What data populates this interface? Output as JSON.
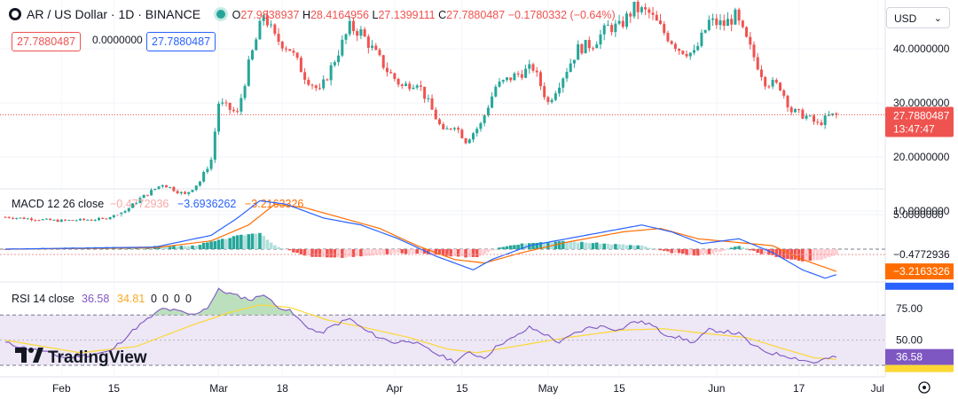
{
  "header": {
    "symbol": "AR / US Dollar · 1D · BINANCE",
    "open_label": "O",
    "open": "27.9838937",
    "high_label": "H",
    "high": "28.4164956",
    "low_label": "L",
    "low": "27.1399111",
    "close_label": "C",
    "close": "27.7880487",
    "change": "−0.1780332 (−0.64%)",
    "bid": "27.7880487",
    "spread": "0.0000000",
    "ask": "27.7880487"
  },
  "currency_select": "USD",
  "last_price_label": "27.7880487",
  "countdown": "13:47:47",
  "brand": "TradingView",
  "colors": {
    "up": "#26a69a",
    "down": "#ef5350",
    "macd": "#2962ff",
    "signal": "#ff6d00",
    "rsi": "#7e57c2",
    "rsi_ma": "#fdd835"
  },
  "chart_data": [
    {
      "type": "candlestick",
      "title": "AR / US Dollar · 1D · BINANCE",
      "y_ticks": [
        "10.0000000",
        "20.0000000",
        "30.0000000",
        "40.0000000"
      ],
      "ylim": [
        3,
        50
      ],
      "x_ticks": [
        "Feb",
        "15",
        "Mar",
        "18",
        "Apr",
        "15",
        "May",
        "15",
        "Jun",
        "17",
        "Jul"
      ],
      "last_price": 27.7880487,
      "close_path": [
        {
          "d": 0,
          "c": 8.9
        },
        {
          "d": 14,
          "c": 8.2
        },
        {
          "d": 26,
          "c": 8.5
        },
        {
          "d": 32,
          "c": 10.0
        },
        {
          "d": 36,
          "c": 12.3
        },
        {
          "d": 42,
          "c": 15.0
        },
        {
          "d": 48,
          "c": 13.0
        },
        {
          "d": 52,
          "c": 15.5
        },
        {
          "d": 55,
          "c": 19.5
        },
        {
          "d": 57,
          "c": 30.0
        },
        {
          "d": 62,
          "c": 28.0
        },
        {
          "d": 65,
          "c": 37.0
        },
        {
          "d": 68,
          "c": 44.0
        },
        {
          "d": 69,
          "c": 46.5
        },
        {
          "d": 72,
          "c": 42.0
        },
        {
          "d": 76,
          "c": 40.0
        },
        {
          "d": 80,
          "c": 35.0
        },
        {
          "d": 84,
          "c": 32.0
        },
        {
          "d": 88,
          "c": 38.0
        },
        {
          "d": 92,
          "c": 44.0
        },
        {
          "d": 95,
          "c": 43.0
        },
        {
          "d": 98,
          "c": 40.0
        },
        {
          "d": 102,
          "c": 36.0
        },
        {
          "d": 106,
          "c": 33.0
        },
        {
          "d": 110,
          "c": 34.0
        },
        {
          "d": 113,
          "c": 30.0
        },
        {
          "d": 117,
          "c": 24.5
        },
        {
          "d": 120,
          "c": 26.0
        },
        {
          "d": 123,
          "c": 23.0
        },
        {
          "d": 127,
          "c": 26.0
        },
        {
          "d": 131,
          "c": 33.0
        },
        {
          "d": 136,
          "c": 35.0
        },
        {
          "d": 141,
          "c": 36.5
        },
        {
          "d": 145,
          "c": 30.0
        },
        {
          "d": 149,
          "c": 35.0
        },
        {
          "d": 153,
          "c": 40.0
        },
        {
          "d": 157,
          "c": 41.0
        },
        {
          "d": 161,
          "c": 44.0
        },
        {
          "d": 164,
          "c": 44.0
        },
        {
          "d": 168,
          "c": 47.5
        },
        {
          "d": 172,
          "c": 46.5
        },
        {
          "d": 176,
          "c": 43.0
        },
        {
          "d": 180,
          "c": 40.0
        },
        {
          "d": 184,
          "c": 39.0
        },
        {
          "d": 188,
          "c": 45.0
        },
        {
          "d": 192,
          "c": 44.5
        },
        {
          "d": 195,
          "c": 46.0
        },
        {
          "d": 199,
          "c": 40.0
        },
        {
          "d": 203,
          "c": 34.0
        },
        {
          "d": 207,
          "c": 33.0
        },
        {
          "d": 210,
          "c": 28.5
        },
        {
          "d": 214,
          "c": 27.5
        },
        {
          "d": 217,
          "c": 26.0
        },
        {
          "d": 220,
          "c": 27.5
        },
        {
          "d": 222,
          "c": 27.8
        }
      ]
    },
    {
      "type": "line",
      "title": "MACD 12 26 close",
      "values_shown": [
        "−0.4772936",
        "−3.6936262",
        "−3.2163326"
      ],
      "y_ticks": [
        "5.0000000"
      ],
      "ylim": [
        -7.5,
        7.5
      ],
      "series": [
        {
          "name": "MACD",
          "points": [
            {
              "d": 0,
              "v": 0
            },
            {
              "d": 40,
              "v": 0.3
            },
            {
              "d": 55,
              "v": 2.0
            },
            {
              "d": 62,
              "v": 4.5
            },
            {
              "d": 68,
              "v": 7.0
            },
            {
              "d": 75,
              "v": 6.5
            },
            {
              "d": 85,
              "v": 4.5
            },
            {
              "d": 95,
              "v": 3.5
            },
            {
              "d": 105,
              "v": 1.5
            },
            {
              "d": 115,
              "v": -1.0
            },
            {
              "d": 125,
              "v": -3.0
            },
            {
              "d": 130,
              "v": -1.5
            },
            {
              "d": 140,
              "v": 0.5
            },
            {
              "d": 150,
              "v": 1.5
            },
            {
              "d": 160,
              "v": 2.5
            },
            {
              "d": 170,
              "v": 3.5
            },
            {
              "d": 178,
              "v": 2.5
            },
            {
              "d": 186,
              "v": 0.8
            },
            {
              "d": 196,
              "v": 1.5
            },
            {
              "d": 205,
              "v": -0.5
            },
            {
              "d": 213,
              "v": -3.0
            },
            {
              "d": 219,
              "v": -4.2
            },
            {
              "d": 222,
              "v": -3.69
            }
          ]
        },
        {
          "name": "Signal",
          "points": [
            {
              "d": 0,
              "v": 0
            },
            {
              "d": 40,
              "v": 0.2
            },
            {
              "d": 55,
              "v": 1.2
            },
            {
              "d": 65,
              "v": 3.5
            },
            {
              "d": 72,
              "v": 6.5
            },
            {
              "d": 80,
              "v": 6.0
            },
            {
              "d": 90,
              "v": 4.5
            },
            {
              "d": 100,
              "v": 3.0
            },
            {
              "d": 110,
              "v": 0.5
            },
            {
              "d": 120,
              "v": -1.5
            },
            {
              "d": 128,
              "v": -2.0
            },
            {
              "d": 138,
              "v": -0.5
            },
            {
              "d": 150,
              "v": 1.0
            },
            {
              "d": 165,
              "v": 2.5
            },
            {
              "d": 175,
              "v": 3.0
            },
            {
              "d": 185,
              "v": 1.5
            },
            {
              "d": 195,
              "v": 1.0
            },
            {
              "d": 205,
              "v": 0.5
            },
            {
              "d": 213,
              "v": -1.5
            },
            {
              "d": 222,
              "v": -3.22
            }
          ]
        }
      ],
      "histogram": [
        {
          "d": 0,
          "v": 0
        },
        {
          "d": 50,
          "v": 0.3
        },
        {
          "d": 57,
          "v": 0.8
        },
        {
          "d": 62,
          "v": 1.2
        },
        {
          "d": 68,
          "v": 1.5
        },
        {
          "d": 72,
          "v": 0.3
        },
        {
          "d": 80,
          "v": -0.6
        },
        {
          "d": 88,
          "v": -0.8
        },
        {
          "d": 96,
          "v": -0.6
        },
        {
          "d": 104,
          "v": -0.4
        },
        {
          "d": 112,
          "v": -0.4
        },
        {
          "d": 120,
          "v": -0.7
        },
        {
          "d": 126,
          "v": -0.7
        },
        {
          "d": 132,
          "v": 0.2
        },
        {
          "d": 140,
          "v": 0.6
        },
        {
          "d": 150,
          "v": 0.7
        },
        {
          "d": 160,
          "v": 0.5
        },
        {
          "d": 170,
          "v": 0.3
        },
        {
          "d": 176,
          "v": -0.2
        },
        {
          "d": 184,
          "v": -0.6
        },
        {
          "d": 190,
          "v": -0.3
        },
        {
          "d": 196,
          "v": 0.3
        },
        {
          "d": 202,
          "v": -0.4
        },
        {
          "d": 208,
          "v": -0.8
        },
        {
          "d": 213,
          "v": -1.1
        },
        {
          "d": 218,
          "v": -0.9
        },
        {
          "d": 222,
          "v": -0.48
        }
      ]
    },
    {
      "type": "line",
      "title": "RSI 14 close",
      "values_shown": [
        "36.58",
        "34.81",
        "0",
        "0",
        "0",
        "0"
      ],
      "y_ticks": [
        "75.00",
        "50.00"
      ],
      "ylim": [
        30,
        95
      ],
      "band": [
        30,
        70
      ],
      "series": [
        {
          "name": "RSI",
          "points": [
            {
              "d": 0,
              "v": 48
            },
            {
              "d": 5,
              "v": 44
            },
            {
              "d": 10,
              "v": 41
            },
            {
              "d": 16,
              "v": 36
            },
            {
              "d": 22,
              "v": 38
            },
            {
              "d": 28,
              "v": 41
            },
            {
              "d": 35,
              "v": 60
            },
            {
              "d": 42,
              "v": 75
            },
            {
              "d": 46,
              "v": 73
            },
            {
              "d": 50,
              "v": 70
            },
            {
              "d": 54,
              "v": 76
            },
            {
              "d": 57,
              "v": 90
            },
            {
              "d": 62,
              "v": 85
            },
            {
              "d": 66,
              "v": 82
            },
            {
              "d": 69,
              "v": 87
            },
            {
              "d": 72,
              "v": 78
            },
            {
              "d": 76,
              "v": 73
            },
            {
              "d": 80,
              "v": 62
            },
            {
              "d": 84,
              "v": 55
            },
            {
              "d": 88,
              "v": 62
            },
            {
              "d": 92,
              "v": 67
            },
            {
              "d": 96,
              "v": 58
            },
            {
              "d": 100,
              "v": 52
            },
            {
              "d": 104,
              "v": 48
            },
            {
              "d": 108,
              "v": 50
            },
            {
              "d": 112,
              "v": 44
            },
            {
              "d": 116,
              "v": 38
            },
            {
              "d": 120,
              "v": 33
            },
            {
              "d": 124,
              "v": 40
            },
            {
              "d": 128,
              "v": 36
            },
            {
              "d": 132,
              "v": 47
            },
            {
              "d": 136,
              "v": 52
            },
            {
              "d": 140,
              "v": 60
            },
            {
              "d": 144,
              "v": 55
            },
            {
              "d": 148,
              "v": 48
            },
            {
              "d": 152,
              "v": 55
            },
            {
              "d": 156,
              "v": 60
            },
            {
              "d": 160,
              "v": 61
            },
            {
              "d": 164,
              "v": 58
            },
            {
              "d": 168,
              "v": 65
            },
            {
              "d": 172,
              "v": 63
            },
            {
              "d": 176,
              "v": 55
            },
            {
              "d": 180,
              "v": 52
            },
            {
              "d": 184,
              "v": 48
            },
            {
              "d": 188,
              "v": 58
            },
            {
              "d": 192,
              "v": 57
            },
            {
              "d": 196,
              "v": 55
            },
            {
              "d": 200,
              "v": 45
            },
            {
              "d": 204,
              "v": 40
            },
            {
              "d": 208,
              "v": 38
            },
            {
              "d": 212,
              "v": 35
            },
            {
              "d": 216,
              "v": 32
            },
            {
              "d": 219,
              "v": 35
            },
            {
              "d": 222,
              "v": 36.58
            }
          ]
        },
        {
          "name": "RSI-based MA",
          "points": [
            {
              "d": 0,
              "v": 50
            },
            {
              "d": 20,
              "v": 40
            },
            {
              "d": 35,
              "v": 45
            },
            {
              "d": 50,
              "v": 62
            },
            {
              "d": 60,
              "v": 72
            },
            {
              "d": 68,
              "v": 78
            },
            {
              "d": 76,
              "v": 76
            },
            {
              "d": 86,
              "v": 66
            },
            {
              "d": 96,
              "v": 60
            },
            {
              "d": 108,
              "v": 52
            },
            {
              "d": 118,
              "v": 43
            },
            {
              "d": 126,
              "v": 40
            },
            {
              "d": 136,
              "v": 45
            },
            {
              "d": 150,
              "v": 52
            },
            {
              "d": 165,
              "v": 58
            },
            {
              "d": 176,
              "v": 59
            },
            {
              "d": 188,
              "v": 55
            },
            {
              "d": 198,
              "v": 52
            },
            {
              "d": 208,
              "v": 43
            },
            {
              "d": 216,
              "v": 36
            },
            {
              "d": 222,
              "v": 34.81
            }
          ]
        }
      ]
    }
  ]
}
